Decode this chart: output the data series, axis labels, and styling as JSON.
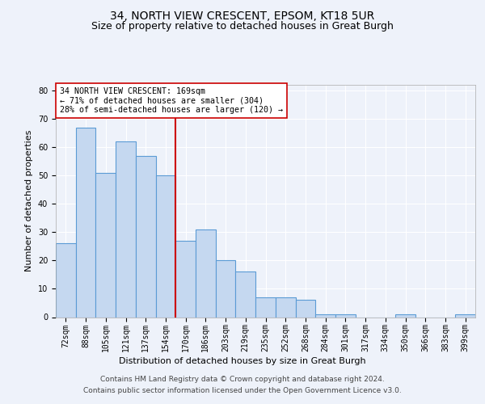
{
  "title": "34, NORTH VIEW CRESCENT, EPSOM, KT18 5UR",
  "subtitle": "Size of property relative to detached houses in Great Burgh",
  "xlabel": "Distribution of detached houses by size in Great Burgh",
  "ylabel": "Number of detached properties",
  "all_labels": [
    "72sqm",
    "88sqm",
    "105sqm",
    "121sqm",
    "137sqm",
    "154sqm",
    "170sqm",
    "186sqm",
    "203sqm",
    "219sqm",
    "235sqm",
    "252sqm",
    "268sqm",
    "284sqm",
    "301sqm",
    "317sqm",
    "334sqm",
    "350sqm",
    "366sqm",
    "383sqm",
    "399sqm"
  ],
  "bar_values_full": [
    26,
    67,
    51,
    62,
    57,
    50,
    27,
    31,
    20,
    16,
    7,
    7,
    6,
    1,
    1,
    0,
    0,
    1,
    0,
    0,
    1
  ],
  "bar_color": "#c5d8f0",
  "bar_edge_color": "#5b9bd5",
  "vline_x": 6.0,
  "vline_color": "#cc0000",
  "annotation_text": "34 NORTH VIEW CRESCENT: 169sqm\n← 71% of detached houses are smaller (304)\n28% of semi-detached houses are larger (120) →",
  "annotation_box_color": "white",
  "annotation_box_edge": "#cc0000",
  "ylim": [
    0,
    82
  ],
  "yticks": [
    0,
    10,
    20,
    30,
    40,
    50,
    60,
    70,
    80
  ],
  "footer_line1": "Contains HM Land Registry data © Crown copyright and database right 2024.",
  "footer_line2": "Contains public sector information licensed under the Open Government Licence v3.0.",
  "bg_color": "#eef2fa",
  "plot_bg_color": "#eef2fa",
  "grid_color": "#ffffff",
  "title_fontsize": 10,
  "subtitle_fontsize": 9,
  "label_fontsize": 8,
  "tick_fontsize": 7,
  "footer_fontsize": 6.5
}
